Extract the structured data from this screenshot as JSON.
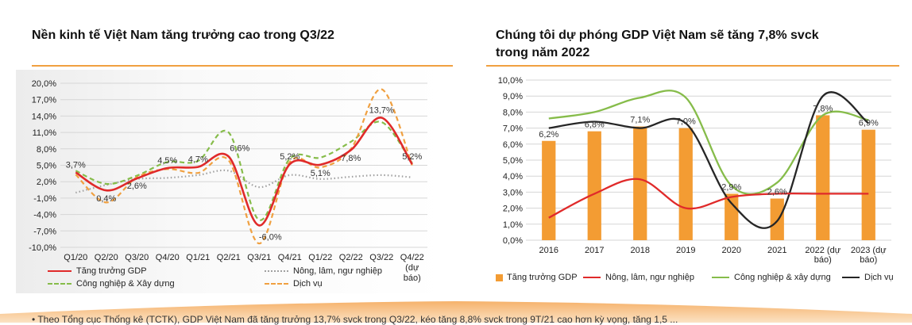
{
  "left_panel": {
    "title": "Nền kinh tế Việt Nam tăng trưởng cao trong Q3/22"
  },
  "right_panel": {
    "title_line1": "Chúng tôi dự phóng GDP Việt Nam sẽ tăng 7,8% svck",
    "title_line2": "trong năm 2022"
  },
  "footnote": "•   Theo Tổng cục Thống kê (TCTK), GDP Việt Nam đã tăng trưởng 13,7% svck trong Q3/22, kéo tăng 8,8% svck trong 9T/21 cao hơn kỳ vọng, tăng 1,5 ...",
  "colors": {
    "gdp": "#e02a2a",
    "agri": "#a0a0a0",
    "industry": "#86bc4a",
    "services": "#f0a040",
    "bar": "#f39c33",
    "dichvu_right": "#262626",
    "grid": "#d6d6d6",
    "accent_rule": "#f0a040"
  },
  "chart_data": [
    {
      "type": "line",
      "title": "Nền kinh tế Việt Nam tăng trưởng cao trong Q3/22",
      "categories": [
        "Q1/20",
        "Q2/20",
        "Q3/20",
        "Q4/20",
        "Q1/21",
        "Q2/21",
        "Q3/21",
        "Q4/21",
        "Q1/22",
        "Q2/22",
        "Q3/22",
        "Q4/22 (dự báo)"
      ],
      "category_lines": [
        [
          "Q1/20"
        ],
        [
          "Q2/20"
        ],
        [
          "Q3/20"
        ],
        [
          "Q4/20"
        ],
        [
          "Q1/21"
        ],
        [
          "Q2/21"
        ],
        [
          "Q3/21"
        ],
        [
          "Q4/21"
        ],
        [
          "Q1/22"
        ],
        [
          "Q2/22"
        ],
        [
          "Q3/22"
        ],
        [
          "Q4/22",
          "(dự",
          "báo)"
        ]
      ],
      "ylim": [
        -10,
        20
      ],
      "yticks": [
        -10,
        -7,
        -4,
        -1,
        2,
        5,
        8,
        11,
        14,
        17,
        20
      ],
      "ytick_labels": [
        "-10,0%",
        "-7,0%",
        "-4,0%",
        "-1,0%",
        "2,0%",
        "5,0%",
        "8,0%",
        "11,0%",
        "14,0%",
        "17,0%",
        "20,0%"
      ],
      "series": [
        {
          "name": "Tăng trưởng GDP",
          "key": "gdp",
          "style": "solid",
          "values": [
            3.7,
            0.4,
            2.6,
            4.5,
            4.7,
            6.6,
            -6.0,
            5.2,
            5.1,
            7.8,
            13.7,
            5.2
          ]
        },
        {
          "name": "Nông, lâm, ngư nghiệp",
          "key": "agri",
          "style": "dot",
          "values": [
            0.0,
            1.4,
            2.5,
            2.7,
            3.2,
            4.0,
            1.0,
            3.2,
            2.5,
            2.9,
            3.2,
            2.8
          ]
        },
        {
          "name": "Công nghiệp & Xây dựng",
          "key": "industry",
          "style": "dash",
          "values": [
            4.0,
            1.6,
            3.1,
            5.6,
            5.8,
            11.0,
            -5.0,
            6.2,
            6.4,
            9.3,
            12.9,
            5.4
          ]
        },
        {
          "name": "Dịch vụ",
          "key": "services",
          "style": "dash",
          "values": [
            3.3,
            -1.8,
            2.8,
            4.3,
            3.6,
            5.9,
            -9.3,
            5.6,
            4.6,
            8.0,
            18.9,
            5.0
          ]
        }
      ],
      "data_labels": [
        {
          "index": 0,
          "text": "3,7%"
        },
        {
          "index": 1,
          "text": "0,4%"
        },
        {
          "index": 2,
          "text": "2,6%"
        },
        {
          "index": 3,
          "text": "4,5%"
        },
        {
          "index": 4,
          "text": "4,7%"
        },
        {
          "index": 5,
          "text": "6,6%"
        },
        {
          "index": 6,
          "text": "-6,0%"
        },
        {
          "index": 7,
          "text": "5,2%"
        },
        {
          "index": 8,
          "text": "5,1%"
        },
        {
          "index": 9,
          "text": "7,8%"
        },
        {
          "index": 10,
          "text": "13,7%"
        },
        {
          "index": 11,
          "text": "5,2%"
        }
      ],
      "legend": [
        "Tăng trưởng GDP",
        "Nông, lâm, ngư nghiệp",
        "Công nghiệp & Xây dựng",
        "Dịch vụ"
      ],
      "legend_placement": "bottom"
    },
    {
      "type": "bar",
      "title": "Chúng tôi dự phóng GDP Việt Nam sẽ tăng 7,8% svck trong năm 2022",
      "categories": [
        "2016",
        "2017",
        "2018",
        "2019",
        "2020",
        "2021",
        "2022 (dự báo)",
        "2023 (dự báo)"
      ],
      "category_lines": [
        [
          "2016"
        ],
        [
          "2017"
        ],
        [
          "2018"
        ],
        [
          "2019"
        ],
        [
          "2020"
        ],
        [
          "2021"
        ],
        [
          "2022 (dự",
          "báo)"
        ],
        [
          "2023 (dự",
          "báo)"
        ]
      ],
      "ylim": [
        0,
        10
      ],
      "yticks": [
        0,
        1,
        2,
        3,
        4,
        5,
        6,
        7,
        8,
        9,
        10
      ],
      "ytick_labels": [
        "0,0%",
        "1,0%",
        "2,0%",
        "3,0%",
        "4,0%",
        "5,0%",
        "6,0%",
        "7,0%",
        "8,0%",
        "9,0%",
        "10,0%"
      ],
      "bar_series": {
        "name": "Tăng trưởng GDP",
        "values": [
          6.2,
          6.8,
          7.1,
          7.0,
          2.9,
          2.6,
          7.8,
          6.9
        ],
        "labels": [
          "6,2%",
          "6,8%",
          "7,1%",
          "7,0%",
          "2,9%",
          "2,6%",
          "7,8%",
          "6,9%"
        ]
      },
      "line_series": [
        {
          "name": "Nông, lâm, ngư nghiệp",
          "key": "gdp",
          "values": [
            1.4,
            2.9,
            3.8,
            2.0,
            2.7,
            2.9,
            2.9,
            2.9
          ]
        },
        {
          "name": "Công nghiệp & xây dựng",
          "key": "industry",
          "values": [
            7.6,
            8.0,
            8.9,
            8.9,
            3.4,
            3.6,
            7.8,
            7.5
          ]
        },
        {
          "name": "Dịch vụ",
          "key": "dichvu_right",
          "values": [
            7.0,
            7.4,
            7.0,
            7.3,
            2.3,
            1.2,
            9.0,
            7.3
          ]
        }
      ],
      "legend": [
        "Tăng trưởng GDP",
        "Nông, lâm, ngư nghiệp",
        "Công nghiệp & xây dựng",
        "Dịch vụ"
      ],
      "legend_placement": "bottom"
    }
  ]
}
